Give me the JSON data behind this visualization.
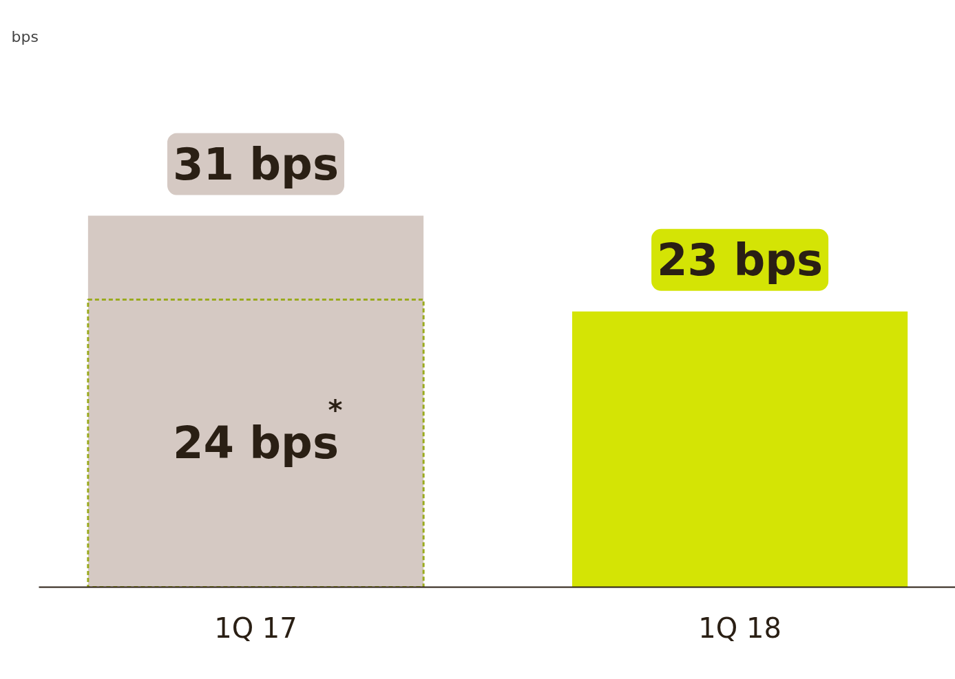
{
  "chart_data": {
    "type": "bar",
    "annotations": [
      "bps"
    ],
    "categories": [
      "1Q 17",
      "1Q 18"
    ],
    "series": [
      {
        "values": [
          31,
          23
        ],
        "colors": [
          "#d5c9c3",
          "#d4e405"
        ],
        "value_labels": [
          "31 bps",
          "23 bps"
        ]
      },
      {
        "values": [
          24,
          null
        ],
        "color": "#9aaa1e",
        "line_style": "dashed",
        "value_labels": [
          "24 bps$^{*}$",
          null
        ]
      }
    ],
    "tick_labels": "x",
    "grid": false
  }
}
